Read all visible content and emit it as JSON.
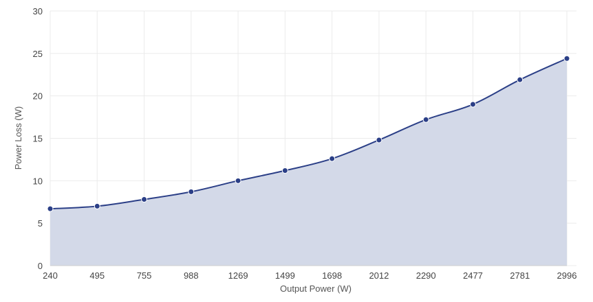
{
  "chart_data": {
    "type": "area",
    "categories": [
      "240",
      "495",
      "755",
      "988",
      "1269",
      "1499",
      "1698",
      "2012",
      "2290",
      "2477",
      "2781",
      "2996"
    ],
    "series": [
      {
        "values": [
          6.7,
          7.0,
          7.8,
          8.7,
          10.0,
          11.2,
          12.6,
          14.8,
          17.2,
          19.0,
          21.9,
          24.4
        ]
      }
    ],
    "xlabel": "Output Power (W)",
    "ylabel": "Power Loss (W)",
    "ylim": [
      0,
      30
    ],
    "yticks": [
      0,
      5,
      10,
      15,
      20,
      25,
      30
    ],
    "grid": true,
    "colors": {
      "line": "#2b3f87",
      "fill": "#d3d9e8",
      "marker": "#2b3f87"
    }
  }
}
